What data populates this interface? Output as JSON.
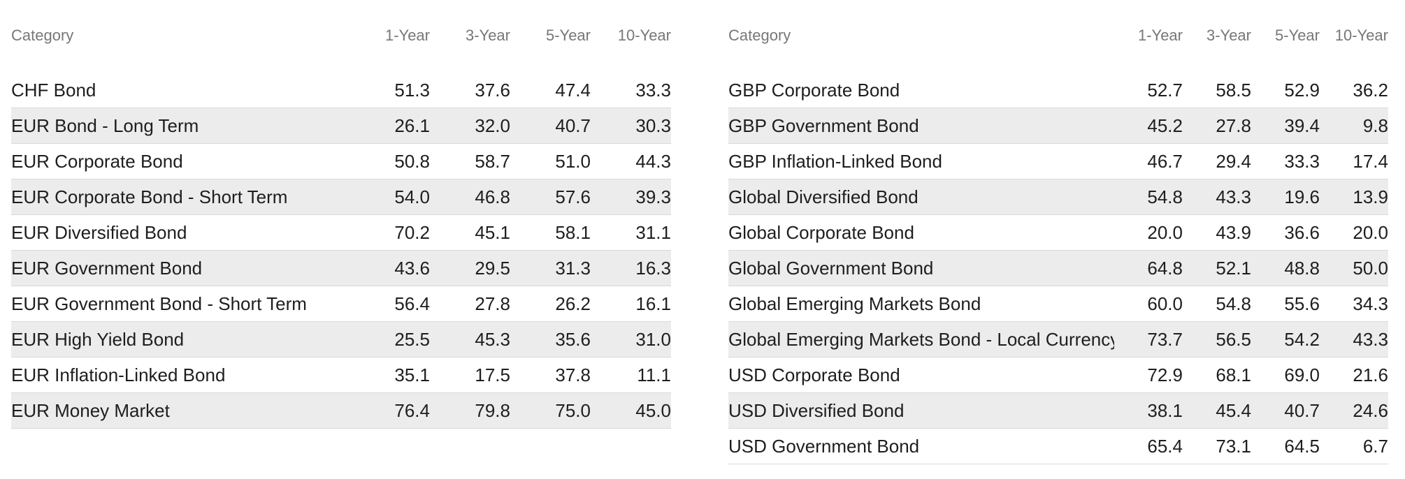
{
  "chart_data": [
    {
      "type": "table",
      "columns": [
        "Category",
        "1-Year",
        "3-Year",
        "5-Year",
        "10-Year"
      ],
      "rows": [
        {
          "category": "CHF Bond",
          "values": [
            "51.3",
            "37.6",
            "47.4",
            "33.3"
          ]
        },
        {
          "category": "EUR Bond - Long Term",
          "values": [
            "26.1",
            "32.0",
            "40.7",
            "30.3"
          ]
        },
        {
          "category": "EUR Corporate Bond",
          "values": [
            "50.8",
            "58.7",
            "51.0",
            "44.3"
          ]
        },
        {
          "category": "EUR Corporate Bond - Short Term",
          "values": [
            "54.0",
            "46.8",
            "57.6",
            "39.3"
          ]
        },
        {
          "category": "EUR Diversified Bond",
          "values": [
            "70.2",
            "45.1",
            "58.1",
            "31.1"
          ]
        },
        {
          "category": "EUR Government Bond",
          "values": [
            "43.6",
            "29.5",
            "31.3",
            "16.3"
          ]
        },
        {
          "category": "EUR Government Bond - Short Term",
          "values": [
            "56.4",
            "27.8",
            "26.2",
            "16.1"
          ]
        },
        {
          "category": "EUR High Yield Bond",
          "values": [
            "25.5",
            "45.3",
            "35.6",
            "31.0"
          ]
        },
        {
          "category": "EUR Inflation-Linked Bond",
          "values": [
            "35.1",
            "17.5",
            "37.8",
            "11.1"
          ]
        },
        {
          "category": "EUR Money Market",
          "values": [
            "76.4",
            "79.8",
            "75.0",
            "45.0"
          ]
        }
      ]
    },
    {
      "type": "table",
      "columns": [
        "Category",
        "1-Year",
        "3-Year",
        "5-Year",
        "10-Year"
      ],
      "rows": [
        {
          "category": "GBP Corporate Bond",
          "values": [
            "52.7",
            "58.5",
            "52.9",
            "36.2"
          ]
        },
        {
          "category": "GBP Government Bond",
          "values": [
            "45.2",
            "27.8",
            "39.4",
            "9.8"
          ]
        },
        {
          "category": "GBP Inflation-Linked Bond",
          "values": [
            "46.7",
            "29.4",
            "33.3",
            "17.4"
          ]
        },
        {
          "category": "Global Diversified Bond",
          "values": [
            "54.8",
            "43.3",
            "19.6",
            "13.9"
          ]
        },
        {
          "category": "Global Corporate Bond",
          "values": [
            "20.0",
            "43.9",
            "36.6",
            "20.0"
          ]
        },
        {
          "category": "Global Government Bond",
          "values": [
            "64.8",
            "52.1",
            "48.8",
            "50.0"
          ]
        },
        {
          "category": "Global Emerging Markets Bond",
          "values": [
            "60.0",
            "54.8",
            "55.6",
            "34.3"
          ]
        },
        {
          "category": "Global Emerging Markets Bond - Local Currency",
          "values": [
            "73.7",
            "56.5",
            "54.2",
            "43.3"
          ]
        },
        {
          "category": "USD Corporate Bond",
          "values": [
            "72.9",
            "68.1",
            "69.0",
            "21.6"
          ]
        },
        {
          "category": "USD Diversified Bond",
          "values": [
            "38.1",
            "45.4",
            "40.7",
            "24.6"
          ]
        },
        {
          "category": "USD Government Bond",
          "values": [
            "65.4",
            "73.1",
            "64.5",
            "6.7"
          ]
        }
      ]
    }
  ]
}
